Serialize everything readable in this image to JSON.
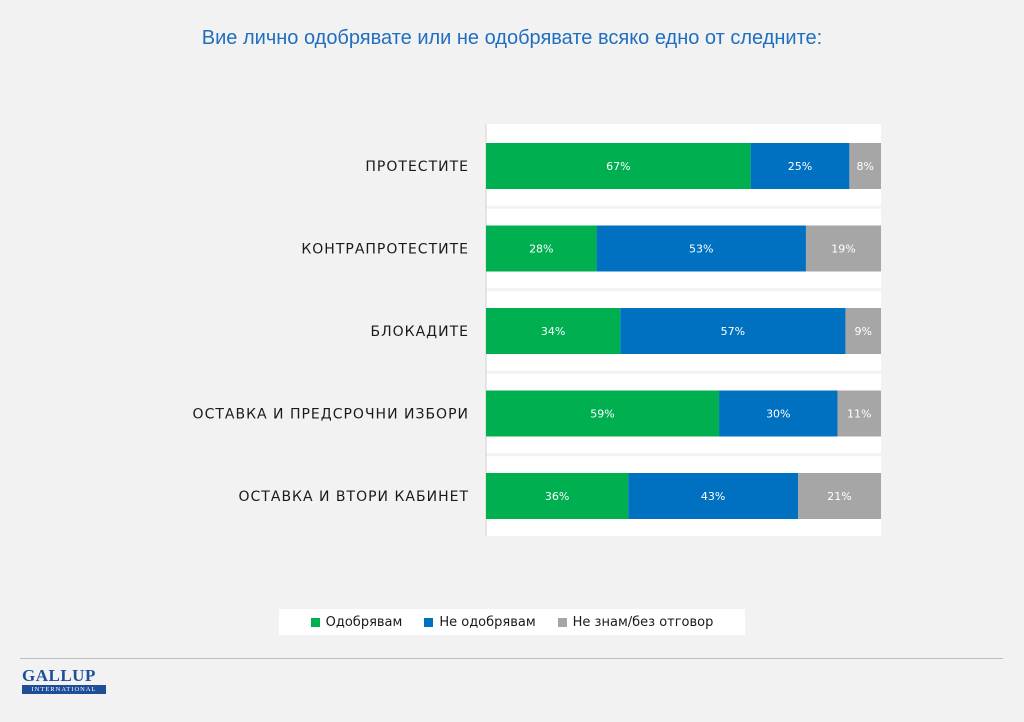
{
  "title": "Вие лично одобрявате или не одобрявате всяко едно от следните:",
  "chart_data": {
    "type": "bar",
    "orientation": "horizontal",
    "stacked": "percent",
    "categories": [
      "ПРОТЕСТИТЕ",
      "КОНТРАПРОТЕСТИТЕ",
      "БЛОКАДИТЕ",
      "ОСТАВКА И ПРЕДСРОЧНИ ИЗБОРИ",
      "ОСТАВКА И ВТОРИ КАБИНЕТ"
    ],
    "series": [
      {
        "name": "Одобрявам",
        "color": "#00b050",
        "values": [
          67,
          28,
          34,
          59,
          36
        ]
      },
      {
        "name": "Не одобрявам",
        "color": "#0070c0",
        "values": [
          25,
          53,
          57,
          30,
          43
        ]
      },
      {
        "name": "Не знам/без отговор",
        "color": "#a6a6a6",
        "values": [
          8,
          19,
          9,
          11,
          21
        ]
      }
    ],
    "value_suffix": "%",
    "xlim": [
      0,
      100
    ],
    "legend_position": "bottom",
    "grid": false
  },
  "logo": {
    "main": "GALLUP",
    "sub": "INTERNATIONAL"
  }
}
